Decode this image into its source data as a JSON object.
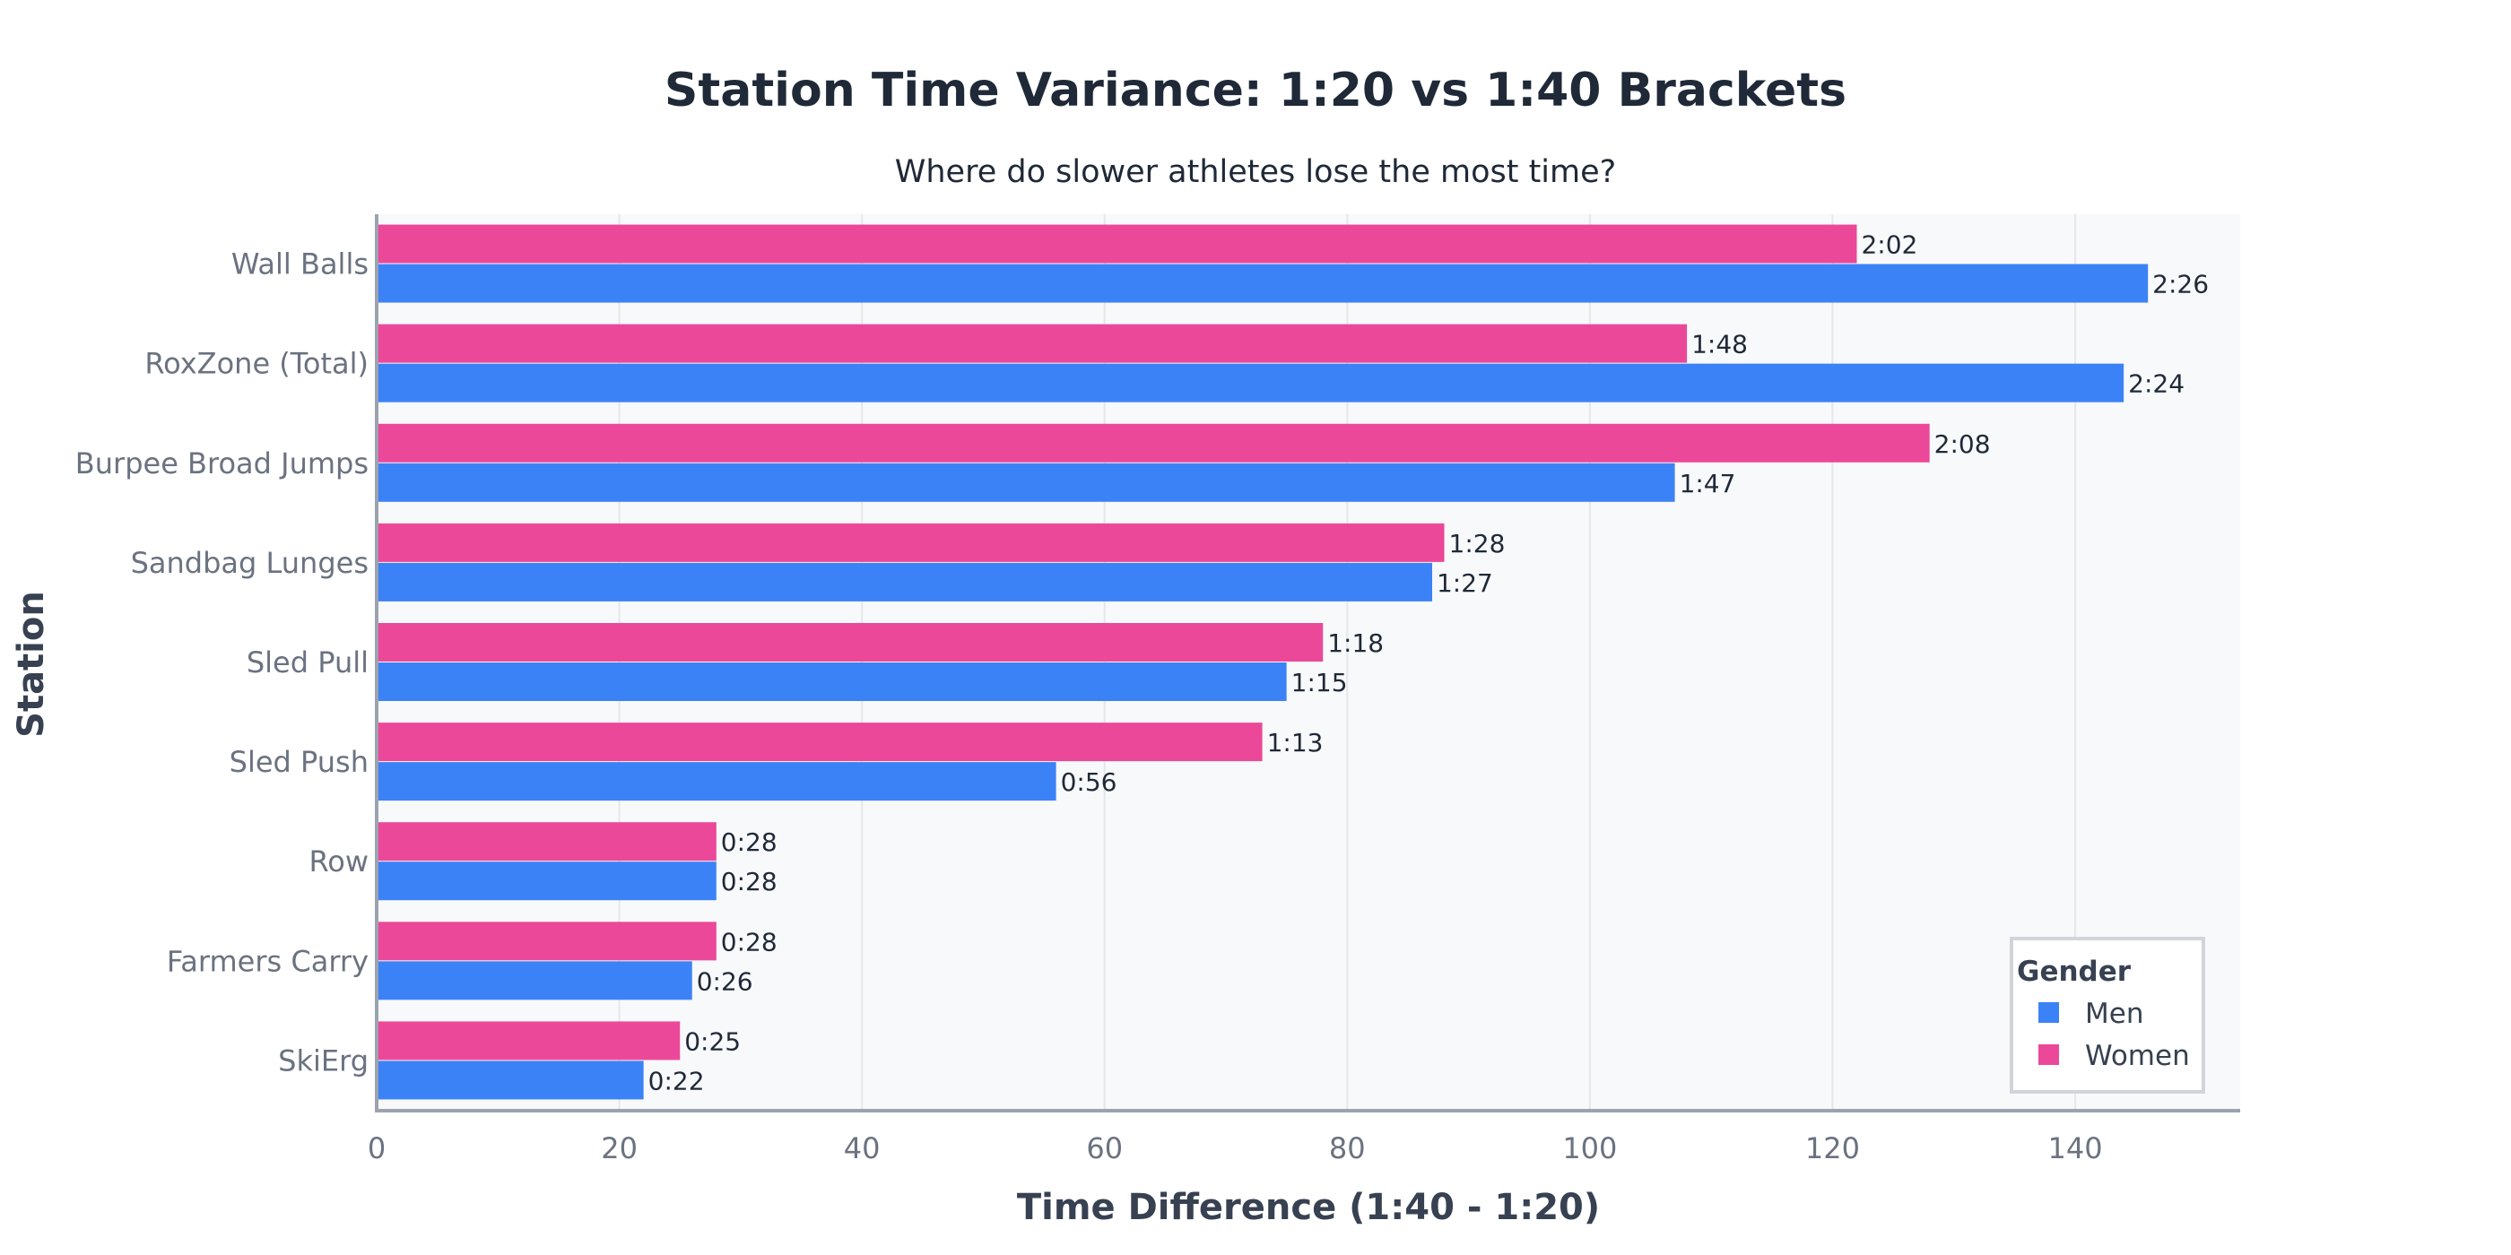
{
  "chart_data": {
    "type": "bar",
    "orientation": "horizontal",
    "title": "Station Time Variance: 1:20 vs 1:40 Brackets",
    "subtitle": "Where do slower athletes lose the most time?",
    "xlabel": "Time Difference (1:40 - 1:20)",
    "ylabel": "Station",
    "xlim": [
      0,
      153.6
    ],
    "xticks": [
      0,
      20,
      40,
      60,
      80,
      100,
      120,
      140
    ],
    "grid": true,
    "categories": [
      "Wall Balls",
      "RoxZone (Total)",
      "Burpee Broad Jumps",
      "Sandbag Lunges",
      "Sled Pull",
      "Sled Push",
      "Row",
      "Farmers Carry",
      "SkiErg"
    ],
    "series": [
      {
        "name": "Men",
        "color": "#3b82f6",
        "values": [
          146,
          144,
          107,
          87,
          75,
          56,
          28,
          26,
          22
        ],
        "labels": [
          "2:26",
          "2:24",
          "1:47",
          "1:27",
          "1:15",
          "0:56",
          "0:28",
          "0:26",
          "0:22"
        ]
      },
      {
        "name": "Women",
        "color": "#ec4899",
        "values": [
          122,
          108,
          128,
          88,
          78,
          73,
          28,
          28,
          25
        ],
        "labels": [
          "2:02",
          "1:48",
          "2:08",
          "1:28",
          "1:18",
          "1:13",
          "0:28",
          "0:28",
          "0:25"
        ]
      }
    ],
    "legend": {
      "title": "Gender",
      "placement": "bottom-right"
    }
  }
}
